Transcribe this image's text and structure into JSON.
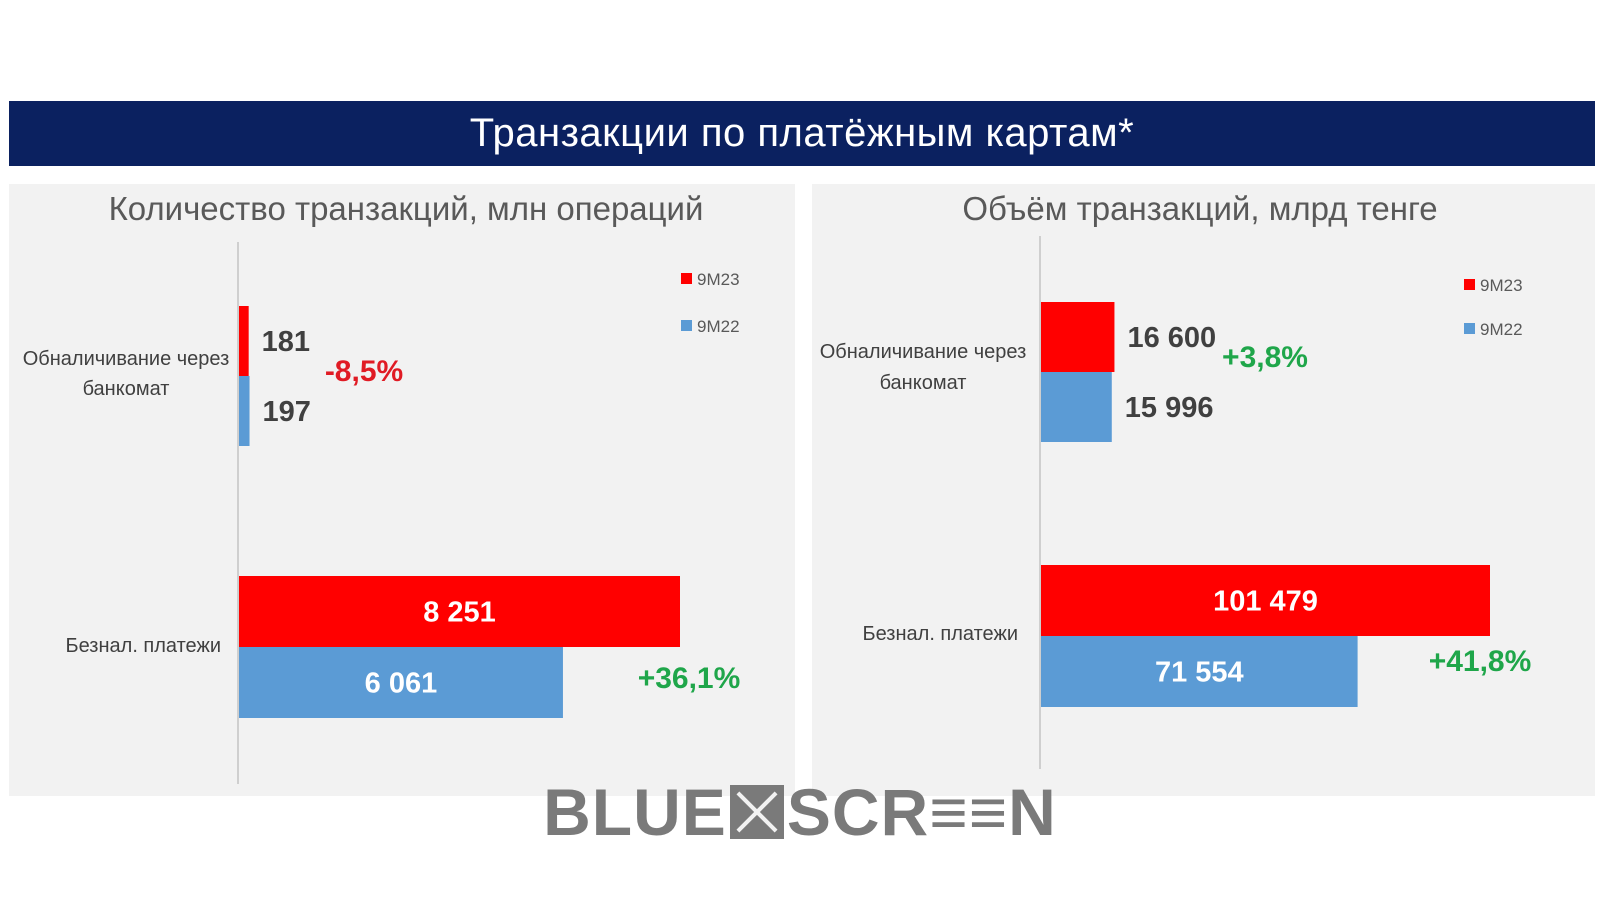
{
  "header": {
    "title": "Транзакции по платёжным картам*"
  },
  "watermark": {
    "left": "BLUE",
    "right": "SCR≡≡N"
  },
  "colors": {
    "current": "#ff0000",
    "previous": "#5b9bd5",
    "negative": "#e01b24",
    "positive": "#1fa64a",
    "banner": "#0b2160"
  },
  "chart_data": [
    {
      "type": "bar",
      "orientation": "horizontal",
      "title": "Количество транзакций, млн операций",
      "categories": [
        "Обналичивание через банкомат",
        "Безнал. платежи"
      ],
      "series": [
        {
          "name": "9M23",
          "values": [
            181,
            8251
          ],
          "labels": [
            "181",
            "8 251"
          ]
        },
        {
          "name": "9M22",
          "values": [
            197,
            6061
          ],
          "labels": [
            "197",
            "6 061"
          ]
        }
      ],
      "changes": [
        "-8,5%",
        "+36,1%"
      ],
      "xlim": [
        0,
        9000
      ],
      "legend": "top-right"
    },
    {
      "type": "bar",
      "orientation": "horizontal",
      "title": "Объём транзакций, млрд тенге",
      "categories": [
        "Обналичивание через банкомат",
        "Безнал. платежи"
      ],
      "series": [
        {
          "name": "9M23",
          "values": [
            16600,
            101479
          ],
          "labels": [
            "16 600",
            "101 479"
          ]
        },
        {
          "name": "9M22",
          "values": [
            15996,
            71554
          ],
          "labels": [
            "15 996",
            "71 554"
          ]
        }
      ],
      "changes": [
        "+3,8%",
        "+41,8%"
      ],
      "xlim": [
        0,
        110000
      ],
      "legend": "top-right"
    }
  ]
}
